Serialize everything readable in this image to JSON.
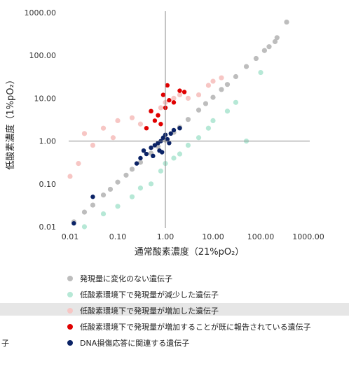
{
  "chart_data": {
    "type": "scatter",
    "title": "",
    "xlabel": "通常酸素濃度（21%pO₂）",
    "ylabel": "低酸素濃度（1%pO₂）",
    "xscale": "log",
    "yscale": "log",
    "xlim": [
      0.01,
      1000
    ],
    "ylim": [
      0.01,
      1000
    ],
    "x_ticks": [
      "0.01",
      "0.10",
      "1.00",
      "10.00",
      "100.00",
      "1000.00"
    ],
    "y_ticks": [
      "0.01",
      "0.10",
      "1.00",
      "10.00",
      "100.00",
      "1000.00"
    ],
    "grid": false,
    "reference_lines": {
      "x": 1,
      "y": 1
    },
    "legend_position": "bottom",
    "series": [
      {
        "name": "発現量に変化のない遺伝子",
        "color": "#bdbdbd",
        "x": [
          0.012,
          0.02,
          0.03,
          0.05,
          0.07,
          0.1,
          0.15,
          0.2,
          0.3,
          0.5,
          0.7,
          1.0,
          1.5,
          2,
          3,
          5,
          7,
          10,
          15,
          20,
          30,
          50,
          80,
          120,
          150,
          200,
          220,
          350
        ],
        "y": [
          0.013,
          0.022,
          0.032,
          0.055,
          0.075,
          0.11,
          0.16,
          0.22,
          0.32,
          0.52,
          0.75,
          1.05,
          1.6,
          2.1,
          3.2,
          5.3,
          7.5,
          10.5,
          16,
          21,
          32,
          55,
          85,
          130,
          160,
          210,
          260,
          600
        ]
      },
      {
        "name": "低酸素環境下で発現量が減少した遺伝子",
        "color": "#b6e8d6",
        "x": [
          0.02,
          0.05,
          0.1,
          0.2,
          0.3,
          0.5,
          0.8,
          1,
          1.5,
          2,
          3,
          5,
          8,
          10,
          20,
          30,
          50,
          100
        ],
        "y": [
          0.01,
          0.02,
          0.03,
          0.05,
          0.08,
          0.1,
          0.2,
          0.3,
          0.4,
          0.5,
          0.8,
          1.2,
          2,
          3,
          5,
          8,
          1.0,
          40
        ]
      },
      {
        "name": "低酸素環境下で発現量が増加した遺伝子",
        "color": "#f7c6c4",
        "x": [
          0.01,
          0.015,
          0.02,
          0.03,
          0.05,
          0.08,
          0.1,
          0.2,
          0.3,
          0.5,
          0.8,
          1,
          1.5,
          2,
          3,
          5,
          8,
          10,
          15
        ],
        "y": [
          0.15,
          0.3,
          1.5,
          0.8,
          2,
          1.2,
          3,
          3.5,
          2.5,
          5,
          6,
          8,
          10,
          12,
          10,
          12,
          20,
          25,
          30
        ]
      },
      {
        "name": "低酸素環境下で発現量が増加することが既に報告されている遺伝子",
        "color": "#e00000",
        "x": [
          0.5,
          0.7,
          0.9,
          1.0,
          1.2,
          1.5,
          2.0,
          2.5,
          0.4,
          0.6,
          0.8,
          1.1
        ],
        "y": [
          5,
          4,
          12,
          6,
          9,
          8,
          15,
          14,
          2,
          3,
          2.5,
          20
        ]
      },
      {
        "name": "DNA損傷応答に関連する遺伝子",
        "color": "#0b2366",
        "x": [
          0.3,
          0.4,
          0.5,
          0.6,
          0.7,
          0.8,
          0.9,
          1.0,
          1.1,
          1.3,
          1.5,
          2.0,
          0.25,
          0.35,
          0.55,
          0.75,
          0.85,
          1.2,
          0.03,
          0.012
        ],
        "y": [
          0.4,
          0.5,
          0.7,
          0.8,
          0.9,
          1.0,
          1.2,
          1.4,
          1.1,
          1.5,
          1.8,
          2.0,
          0.3,
          0.6,
          0.45,
          0.6,
          0.55,
          0.9,
          0.05,
          0.012
        ]
      }
    ]
  },
  "legend": {
    "items": [
      {
        "label": "発現量に変化のない遺伝子",
        "color": "#bdbdbd"
      },
      {
        "label": "低酸素環境下で発現量が減少した遺伝子",
        "color": "#b6e8d6"
      },
      {
        "label": "低酸素環境下で発現量が増加した遺伝子",
        "color": "#f7c6c4"
      },
      {
        "label": "低酸素環境下で発現量が増加することが既に報告されている遺伝子",
        "color": "#e00000"
      },
      {
        "label": "DNA損傷応答に関連する遺伝子",
        "color": "#0b2366"
      }
    ]
  },
  "edge_text": "子"
}
